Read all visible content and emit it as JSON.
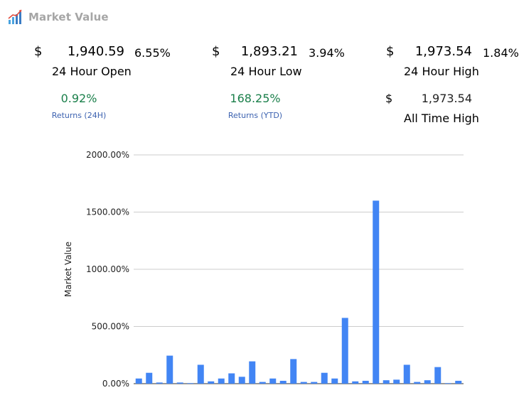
{
  "header": {
    "title": "Market Value",
    "logo_icon": "chart-logo-icon"
  },
  "stats": {
    "open": {
      "currency": "$",
      "value": "1,940.59",
      "change": "6.55%",
      "label": "24 Hour Open"
    },
    "low": {
      "currency": "$",
      "value": "1,893.21",
      "change": "3.94%",
      "label": "24 Hour Low"
    },
    "high": {
      "currency": "$",
      "value": "1,973.54",
      "change": "1.84%",
      "label": "24 Hour High"
    },
    "returns_24h": {
      "value": "0.92%",
      "label": "Returns (24H)"
    },
    "returns_ytd": {
      "value": "168.25%",
      "label": "Returns (YTD)"
    },
    "ath": {
      "currency": "$",
      "value": "1,973.54",
      "label": "All Time High"
    }
  },
  "colors": {
    "bar": "#4285f4",
    "grid": "#cccccc",
    "positive": "#1a7f4a",
    "label": "#3c62b0"
  },
  "chart_data": {
    "type": "bar",
    "ylabel": "Market Value",
    "ylim": [
      0,
      2000
    ],
    "yticks": [
      "0.00%",
      "500.00%",
      "1000.00%",
      "1500.00%",
      "2000.00%"
    ],
    "values": [
      45,
      95,
      10,
      245,
      10,
      5,
      165,
      20,
      45,
      90,
      60,
      195,
      15,
      45,
      25,
      215,
      15,
      15,
      95,
      45,
      575,
      20,
      25,
      1600,
      30,
      35,
      165,
      15,
      30,
      145,
      5,
      25
    ]
  }
}
